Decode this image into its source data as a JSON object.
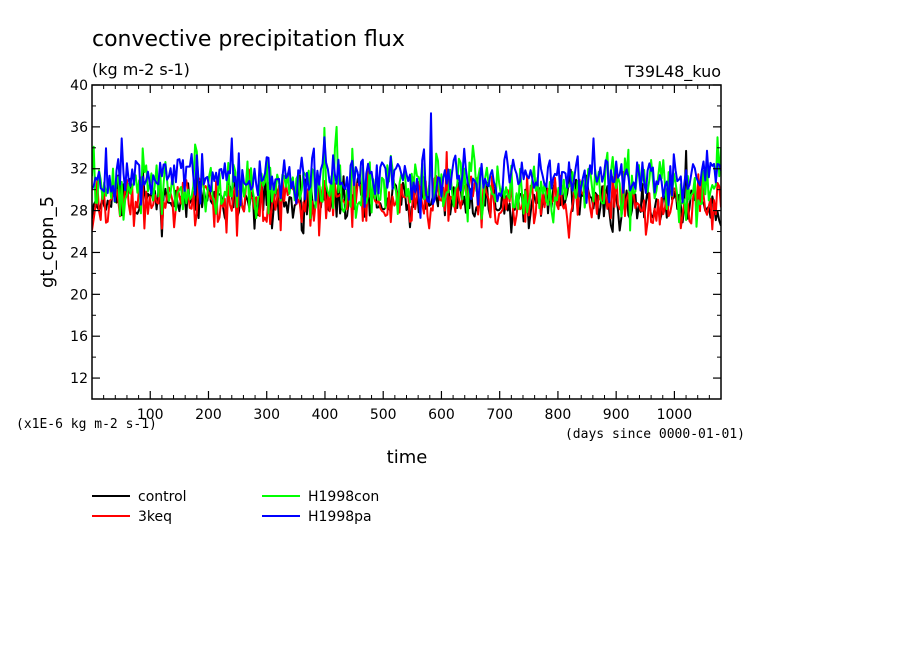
{
  "chart_data": {
    "type": "line",
    "title": "convective precipitation flux",
    "subtitle": "(kg m-2 s-1)",
    "experiment": "T39L48_kuo",
    "xlabel": "time",
    "x_unit": "(days since 0000-01-01)",
    "ylabel": "gt_cppn_5",
    "y_unit": "(x1E-6 kg m-2 s-1)",
    "xlim": [
      0,
      1080
    ],
    "ylim": [
      10,
      40
    ],
    "xticks": [
      100,
      200,
      300,
      400,
      500,
      600,
      700,
      800,
      900,
      1000
    ],
    "yticks": [
      12,
      16,
      20,
      24,
      28,
      32,
      36,
      40
    ],
    "grid": false,
    "legend_position": "bottom-left",
    "x_step": 3,
    "series": [
      {
        "name": "control",
        "color": "#000000",
        "mean": 29.0,
        "amplitude": 1.5,
        "seed": 11,
        "extremes": [
          [
            230,
            27.0
          ],
          [
            310,
            26.3
          ],
          [
            545,
            26.4
          ],
          [
            720,
            25.9
          ],
          [
            905,
            26.1
          ],
          [
            1020,
            33.7
          ]
        ]
      },
      {
        "name": "3keq",
        "color": "#ff0000",
        "mean": 28.9,
        "amplitude": 1.6,
        "seed": 23,
        "extremes": [
          [
            140,
            26.4
          ],
          [
            230,
            25.9
          ],
          [
            610,
            33.6
          ],
          [
            820,
            25.4
          ],
          [
            950,
            25.7
          ],
          [
            1065,
            26.2
          ]
        ]
      },
      {
        "name": "H1998con",
        "color": "#00ff00",
        "mean": 30.3,
        "amplitude": 1.9,
        "seed": 37,
        "extremes": [
          [
            2,
            34.1
          ],
          [
            400,
            35.9
          ],
          [
            420,
            36.0
          ],
          [
            655,
            34.2
          ],
          [
            925,
            26.1
          ],
          [
            1075,
            35.0
          ]
        ]
      },
      {
        "name": "H1998pa",
        "color": "#0000ff",
        "mean": 31.2,
        "amplitude": 1.5,
        "seed": 53,
        "extremes": [
          [
            50,
            34.9
          ],
          [
            240,
            34.9
          ],
          [
            400,
            35.0
          ],
          [
            583,
            37.3
          ],
          [
            565,
            27.3
          ],
          [
            860,
            34.9
          ]
        ]
      }
    ]
  }
}
